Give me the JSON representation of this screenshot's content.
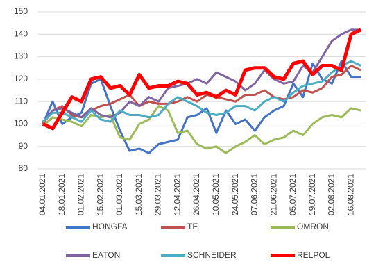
{
  "chart_data": {
    "type": "line",
    "categories": [
      "04.01.2021",
      null,
      "18.01.2021",
      null,
      "01.02.2021",
      null,
      "15.02.2021",
      null,
      "01.03.2021",
      null,
      "15.03.2021",
      null,
      "29.03.2021",
      null,
      "12.04.2021",
      null,
      "26.04.2021",
      null,
      "10.05.2021",
      null,
      "24.05.2021",
      null,
      "07.06.2021",
      null,
      "21.06.2021",
      null,
      "05.07.2021",
      null,
      "19.07.2021",
      null,
      "02.08.2021",
      null,
      "16.08.2021",
      null
    ],
    "series": [
      {
        "name": "HONGFA",
        "color": "#4472c4",
        "linewidth": 3,
        "values": [
          100,
          110,
          100,
          103,
          105,
          118,
          120,
          108,
          97,
          88,
          89,
          87,
          91,
          92,
          93,
          103,
          104,
          107,
          96,
          106,
          100,
          102,
          97,
          103,
          106,
          108,
          118,
          112,
          127,
          120,
          118,
          128,
          121,
          121
        ]
      },
      {
        "name": "TE",
        "color": "#c0504d",
        "linewidth": 3,
        "values": [
          100,
          106,
          108,
          104,
          103,
          106,
          108,
          109,
          111,
          113,
          108,
          110,
          109,
          109,
          110,
          112,
          110,
          113,
          112,
          111,
          110,
          113,
          113,
          115,
          112,
          111,
          112,
          115,
          114,
          116,
          121,
          122,
          126,
          124
        ]
      },
      {
        "name": "OMRON",
        "color": "#9bbb59",
        "linewidth": 3,
        "values": [
          99,
          103,
          102,
          101,
          99,
          104,
          103,
          104,
          94,
          93,
          100,
          102,
          108,
          106,
          96,
          97,
          91,
          89,
          90,
          87,
          90,
          92,
          95,
          91,
          93,
          94,
          97,
          95,
          100,
          103,
          104,
          103,
          107,
          106
        ]
      },
      {
        "name": "EATON",
        "color": "#8064a2",
        "linewidth": 3,
        "values": [
          101,
          106,
          107,
          105,
          103,
          107,
          104,
          103,
          105,
          110,
          108,
          112,
          110,
          116,
          117,
          118,
          120,
          118,
          123,
          121,
          119,
          115,
          118,
          124,
          120,
          118,
          119,
          126,
          123,
          130,
          137,
          140,
          142,
          142
        ]
      },
      {
        "name": "SCHNEIDER",
        "color": "#4bacc6",
        "linewidth": 3,
        "values": [
          101,
          105,
          105,
          103,
          101,
          106,
          102,
          101,
          106,
          104,
          104,
          103,
          104,
          109,
          112,
          110,
          108,
          105,
          104,
          105,
          108,
          108,
          106,
          110,
          112,
          110,
          114,
          117,
          118,
          119,
          123,
          126,
          128,
          126
        ]
      },
      {
        "name": "RELPOL",
        "color": "#ff0000",
        "linewidth": 5,
        "values": [
          100,
          98,
          105,
          112,
          110,
          120,
          121,
          116,
          117,
          113,
          122,
          116,
          117,
          117,
          119,
          118,
          113,
          114,
          112,
          115,
          113,
          124,
          125,
          125,
          121,
          120,
          127,
          128,
          122,
          126,
          126,
          124,
          140,
          142
        ]
      }
    ],
    "ylim": [
      80,
      150
    ],
    "yticks": [
      80,
      90,
      100,
      110,
      120,
      130,
      140,
      150
    ],
    "grid": true,
    "legend": "bottom"
  }
}
